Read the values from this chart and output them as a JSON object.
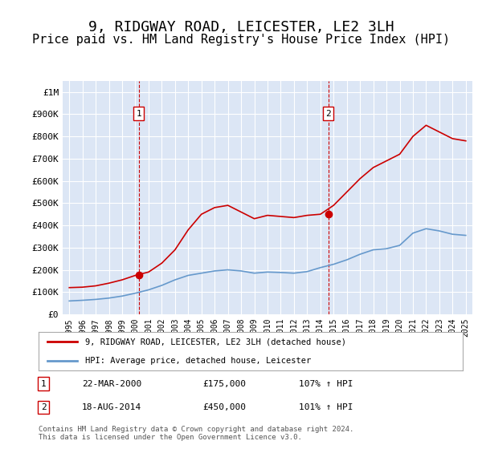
{
  "title": "9, RIDGWAY ROAD, LEICESTER, LE2 3LH",
  "subtitle": "Price paid vs. HM Land Registry's House Price Index (HPI)",
  "title_fontsize": 13,
  "subtitle_fontsize": 11,
  "background_color": "#ffffff",
  "plot_bg_color": "#dce6f5",
  "grid_color": "#ffffff",
  "red_line_color": "#cc0000",
  "blue_line_color": "#6699cc",
  "marker1_date_idx": 5.25,
  "marker1_value": 175000,
  "marker1_label": "1",
  "marker1_date_str": "22-MAR-2000",
  "marker1_price_str": "£175,000",
  "marker1_hpi_str": "107% ↑ HPI",
  "marker2_date_idx": 19.6,
  "marker2_value": 450000,
  "marker2_label": "2",
  "marker2_date_str": "18-AUG-2014",
  "marker2_price_str": "£450,000",
  "marker2_hpi_str": "101% ↑ HPI",
  "dashed_line_color": "#cc0000",
  "xlabel": "",
  "ylabel": "",
  "ylim_min": 0,
  "ylim_max": 1050000,
  "legend_label_red": "9, RIDGWAY ROAD, LEICESTER, LE2 3LH (detached house)",
  "legend_label_blue": "HPI: Average price, detached house, Leicester",
  "footnote": "Contains HM Land Registry data © Crown copyright and database right 2024.\nThis data is licensed under the Open Government Licence v3.0.",
  "years": [
    1995,
    1996,
    1997,
    1998,
    1999,
    2000,
    2001,
    2002,
    2003,
    2004,
    2005,
    2006,
    2007,
    2008,
    2009,
    2010,
    2011,
    2012,
    2013,
    2014,
    2015,
    2016,
    2017,
    2018,
    2019,
    2020,
    2021,
    2022,
    2023,
    2024,
    2025
  ],
  "hpi_values": [
    60000,
    63000,
    67000,
    73000,
    82000,
    95000,
    110000,
    130000,
    155000,
    175000,
    185000,
    195000,
    200000,
    195000,
    185000,
    190000,
    188000,
    185000,
    192000,
    210000,
    225000,
    245000,
    270000,
    290000,
    295000,
    310000,
    365000,
    385000,
    375000,
    360000,
    355000
  ],
  "red_line_x": [
    0,
    1,
    2,
    3,
    4,
    5,
    6,
    7,
    8,
    9,
    10,
    11,
    12,
    13,
    14,
    15,
    16,
    17,
    18,
    19,
    20,
    21,
    22,
    23,
    24,
    25,
    26,
    27,
    28,
    29,
    30
  ],
  "red_line_y": [
    120000,
    122000,
    128000,
    140000,
    155000,
    175000,
    190000,
    230000,
    290000,
    380000,
    450000,
    480000,
    490000,
    460000,
    430000,
    445000,
    440000,
    435000,
    445000,
    450000,
    490000,
    550000,
    610000,
    660000,
    690000,
    720000,
    800000,
    850000,
    820000,
    790000,
    780000
  ]
}
